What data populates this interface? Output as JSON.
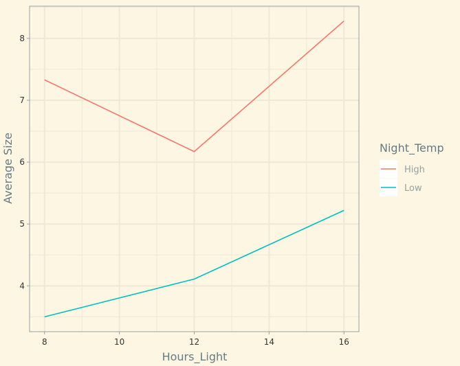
{
  "chart_data": {
    "type": "line",
    "x": [
      8,
      12,
      16
    ],
    "series": [
      {
        "name": "High",
        "color": "#f8766d",
        "values": [
          7.33,
          6.17,
          8.28
        ]
      },
      {
        "name": "Low",
        "color": "#00bfc4",
        "values": [
          3.5,
          4.11,
          5.22
        ]
      }
    ],
    "xlabel": "Hours_Light",
    "ylabel": "Average Size",
    "xlim": [
      7.6,
      16.4
    ],
    "ylim": [
      3.26,
      8.52
    ],
    "xticks": [
      8,
      10,
      12,
      14,
      16
    ],
    "yticks": [
      4,
      5,
      6,
      7,
      8
    ],
    "x_tick_labels": [
      "8",
      "10",
      "12",
      "14",
      "16"
    ],
    "y_tick_labels": [
      "4",
      "5",
      "6",
      "7",
      "8"
    ],
    "legend": {
      "title": "Night_Temp",
      "position": "right"
    },
    "grid": true,
    "colors": {
      "background": "#fdf6e3",
      "grid": "#eee8d5",
      "axis": "#93a1a1"
    }
  }
}
